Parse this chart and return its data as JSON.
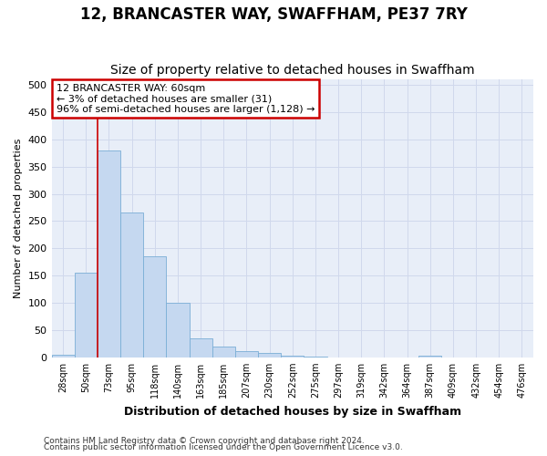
{
  "title": "12, BRANCASTER WAY, SWAFFHAM, PE37 7RY",
  "subtitle": "Size of property relative to detached houses in Swaffham",
  "xlabel": "Distribution of detached houses by size in Swaffham",
  "ylabel": "Number of detached properties",
  "footer1": "Contains HM Land Registry data © Crown copyright and database right 2024.",
  "footer2": "Contains public sector information licensed under the Open Government Licence v3.0.",
  "bar_labels": [
    "28sqm",
    "50sqm",
    "73sqm",
    "95sqm",
    "118sqm",
    "140sqm",
    "163sqm",
    "185sqm",
    "207sqm",
    "230sqm",
    "252sqm",
    "275sqm",
    "297sqm",
    "319sqm",
    "342sqm",
    "364sqm",
    "387sqm",
    "409sqm",
    "432sqm",
    "454sqm",
    "476sqm"
  ],
  "bar_values": [
    5,
    155,
    380,
    265,
    185,
    100,
    35,
    20,
    12,
    8,
    3,
    1,
    0,
    0,
    0,
    0,
    3,
    0,
    0,
    0,
    0
  ],
  "bar_color": "#c5d8f0",
  "bar_edge_color": "#7aaed6",
  "vline_x": 1.5,
  "annotation_text1": "12 BRANCASTER WAY: 60sqm",
  "annotation_text2": "← 3% of detached houses are smaller (31)",
  "annotation_text3": "96% of semi-detached houses are larger (1,128) →",
  "annotation_box_color": "#ffffff",
  "annotation_border_color": "#cc0000",
  "vline_color": "#cc0000",
  "ylim": [
    0,
    510
  ],
  "yticks": [
    0,
    50,
    100,
    150,
    200,
    250,
    300,
    350,
    400,
    450,
    500
  ],
  "grid_color": "#d0d8ec",
  "bg_color": "#ffffff",
  "axes_bg_color": "#e8eef8",
  "title_fontsize": 12,
  "subtitle_fontsize": 10,
  "xlabel_fontsize": 9,
  "ylabel_fontsize": 8
}
